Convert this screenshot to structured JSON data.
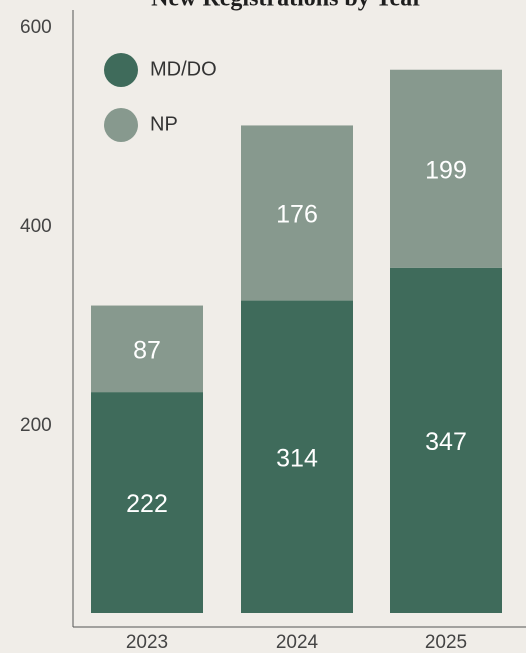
{
  "chart_data": {
    "type": "bar",
    "stacked": true,
    "title": "New Registrations by Year",
    "categories": [
      "2023",
      "2024",
      "2025"
    ],
    "series": [
      {
        "name": "MD/DO",
        "color": "#3f6b5b",
        "values": [
          222,
          314,
          347
        ]
      },
      {
        "name": "NP",
        "color": "#87998e",
        "values": [
          87,
          176,
          199
        ]
      }
    ],
    "ylim": [
      0,
      600
    ],
    "yticks": [
      200,
      400,
      600
    ],
    "grid": false,
    "legend": "top-left"
  }
}
